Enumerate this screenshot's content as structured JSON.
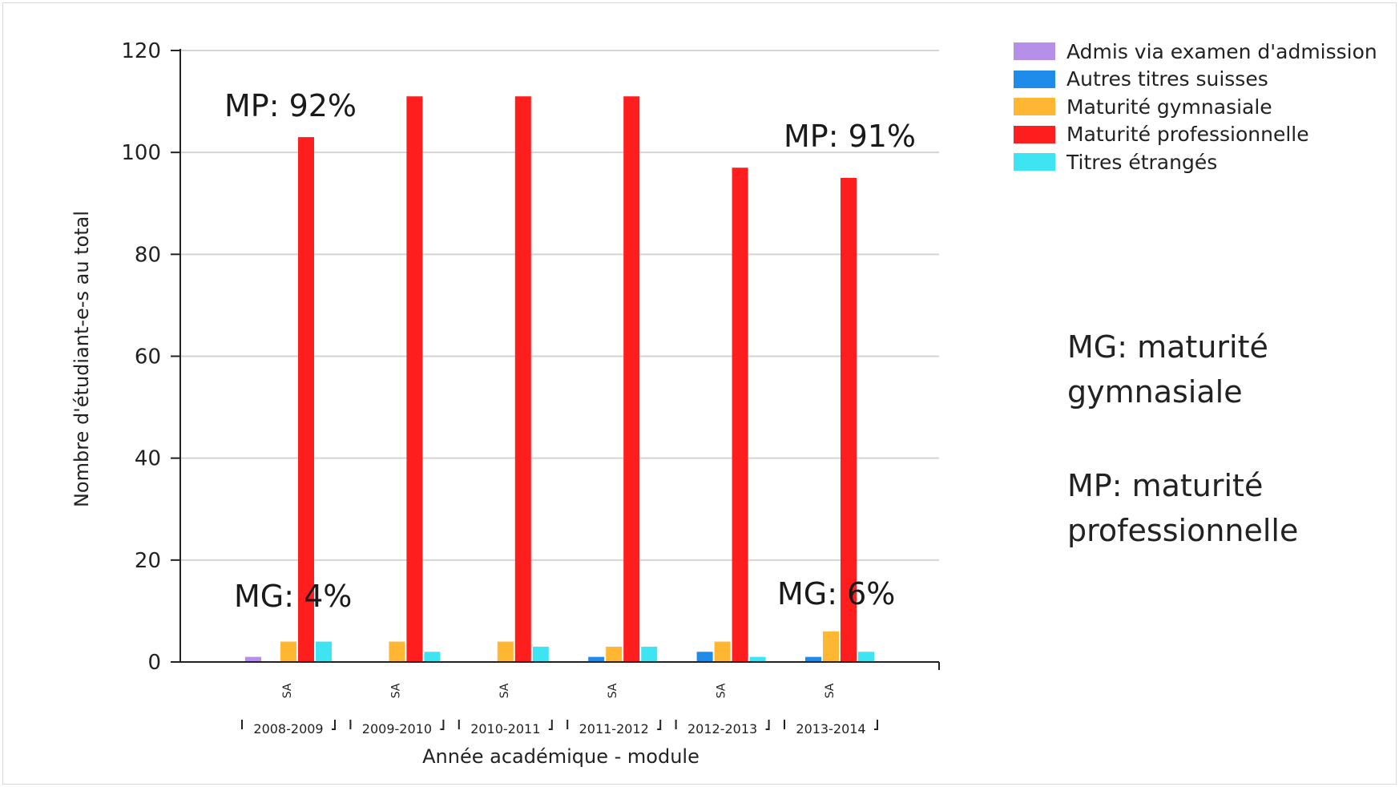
{
  "chart_data": {
    "type": "bar",
    "title": "",
    "xlabel": "Année académique - module",
    "ylabel": "Nombre d'étudiant-e-s au total",
    "ylim": [
      0,
      120
    ],
    "yticks": [
      "0",
      "20",
      "40",
      "60",
      "80",
      "100",
      "120"
    ],
    "categories": [
      "2008-2009",
      "2009-2010",
      "2010-2011",
      "2011-2012",
      "2012-2013",
      "2013-2014"
    ],
    "module_label": "SA",
    "grid": true,
    "legend_position": "top-right",
    "series": [
      {
        "name": "Admis via examen d'admission",
        "color": "#b58fe8",
        "values": [
          1,
          0,
          0,
          0,
          0,
          0
        ]
      },
      {
        "name": "Autres titres suisses",
        "color": "#1e8ce8",
        "values": [
          0,
          0,
          0,
          1,
          2,
          1
        ]
      },
      {
        "name": "Maturité gymnasiale",
        "color": "#ffb733",
        "values": [
          4,
          4,
          4,
          3,
          4,
          6
        ]
      },
      {
        "name": "Maturité professionnelle",
        "color": "#ff1e1e",
        "values": [
          103,
          111,
          111,
          111,
          97,
          95
        ]
      },
      {
        "name": "Titres étrangés",
        "color": "#3ee4f2",
        "values": [
          4,
          2,
          3,
          3,
          1,
          2
        ]
      }
    ],
    "annotations": [
      "MP: 92%",
      "MP: 91%",
      "MG: 4%",
      "MG: 6%"
    ]
  },
  "notes": [
    [
      "MG: maturité",
      "gymnasiale"
    ],
    [
      "MP: maturité",
      "professionnelle"
    ]
  ]
}
